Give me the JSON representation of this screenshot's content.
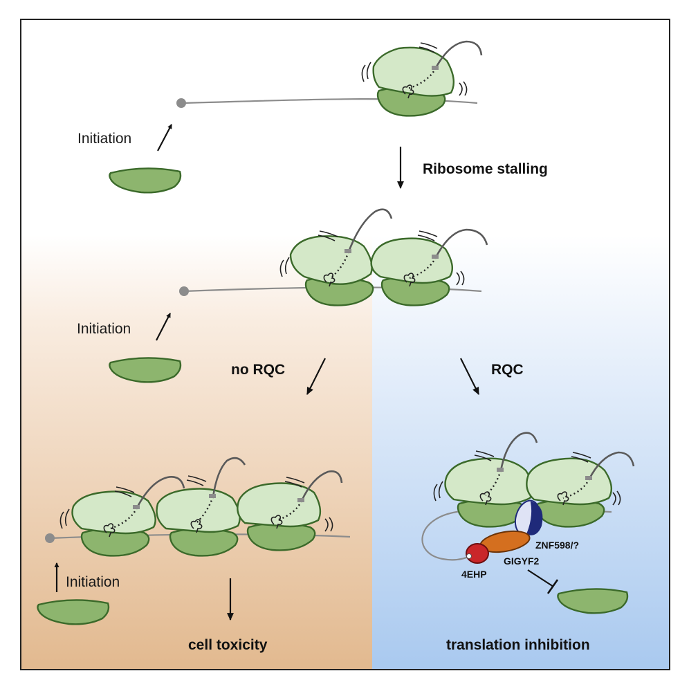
{
  "stage_top": {
    "initiation_label": "Initiation",
    "transition_label": "Ribosome stalling"
  },
  "stage_middle": {
    "initiation_label": "Initiation",
    "left_branch_label": "no RQC",
    "right_branch_label": "RQC"
  },
  "outcome_left": {
    "initiation_label": "Initiation",
    "result_label": "cell toxicity"
  },
  "outcome_right": {
    "proteins": {
      "znf598": "ZNF598/?",
      "gigyf2": "GIGYF2",
      "fourehp": "4EHP"
    },
    "result_label": "translation inhibition"
  },
  "colors": {
    "ribosome_large": "#d4e8c8",
    "ribosome_small": "#8db56e",
    "ribosome_outline": "#3b6a2a",
    "panel_left_bg": "#e2b98f",
    "panel_right_bg": "#a9c9ef",
    "znf598": "#1f2a7a",
    "gigyf2": "#d46f1f",
    "fourehp": "#c9262a"
  }
}
